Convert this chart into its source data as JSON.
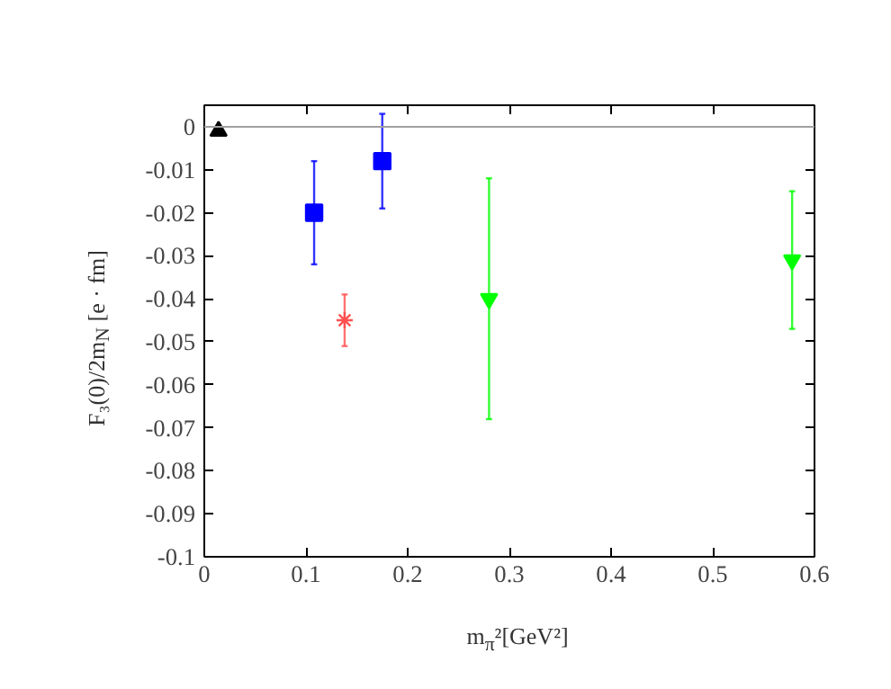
{
  "chart_data": {
    "type": "scatter",
    "xlabel": "m$_{π}$²[GeV²]",
    "ylabel": "F₃(0)/2m$_{N}$ [e · fm]",
    "xlim": [
      0,
      0.6
    ],
    "ylim": [
      -0.1,
      0.005
    ],
    "xticks": [
      0,
      0.1,
      0.2,
      0.3,
      0.4,
      0.5,
      0.6
    ],
    "yticks": [
      0,
      -0.01,
      -0.02,
      -0.03,
      -0.04,
      -0.05,
      -0.06,
      -0.07,
      -0.08,
      -0.09,
      -0.1
    ],
    "grid": false,
    "ref_lines": [
      {
        "axis": "y",
        "value": 0,
        "color": "#a0a0a0"
      }
    ],
    "series": [
      {
        "marker": "triangle",
        "color": "#000000",
        "x": [
          0.014
        ],
        "values": [
          -0.001
        ]
      },
      {
        "marker": "square",
        "color": "#0000ff",
        "x": [
          0.108,
          0.175
        ],
        "values": [
          -0.02,
          -0.008
        ],
        "errors": [
          [
            -0.032,
            -0.008
          ],
          [
            -0.019,
            0.003
          ]
        ]
      },
      {
        "marker": "cross",
        "color": "#ff5050",
        "x": [
          0.138
        ],
        "values": [
          -0.045
        ],
        "errors": [
          [
            -0.051,
            -0.039
          ]
        ]
      },
      {
        "marker": "triangle_down",
        "color": "#00ff00",
        "x": [
          0.28,
          0.578
        ],
        "values": [
          -0.04,
          -0.031
        ],
        "errors": [
          [
            -0.068,
            -0.012
          ],
          [
            -0.047,
            -0.015
          ]
        ]
      }
    ]
  }
}
